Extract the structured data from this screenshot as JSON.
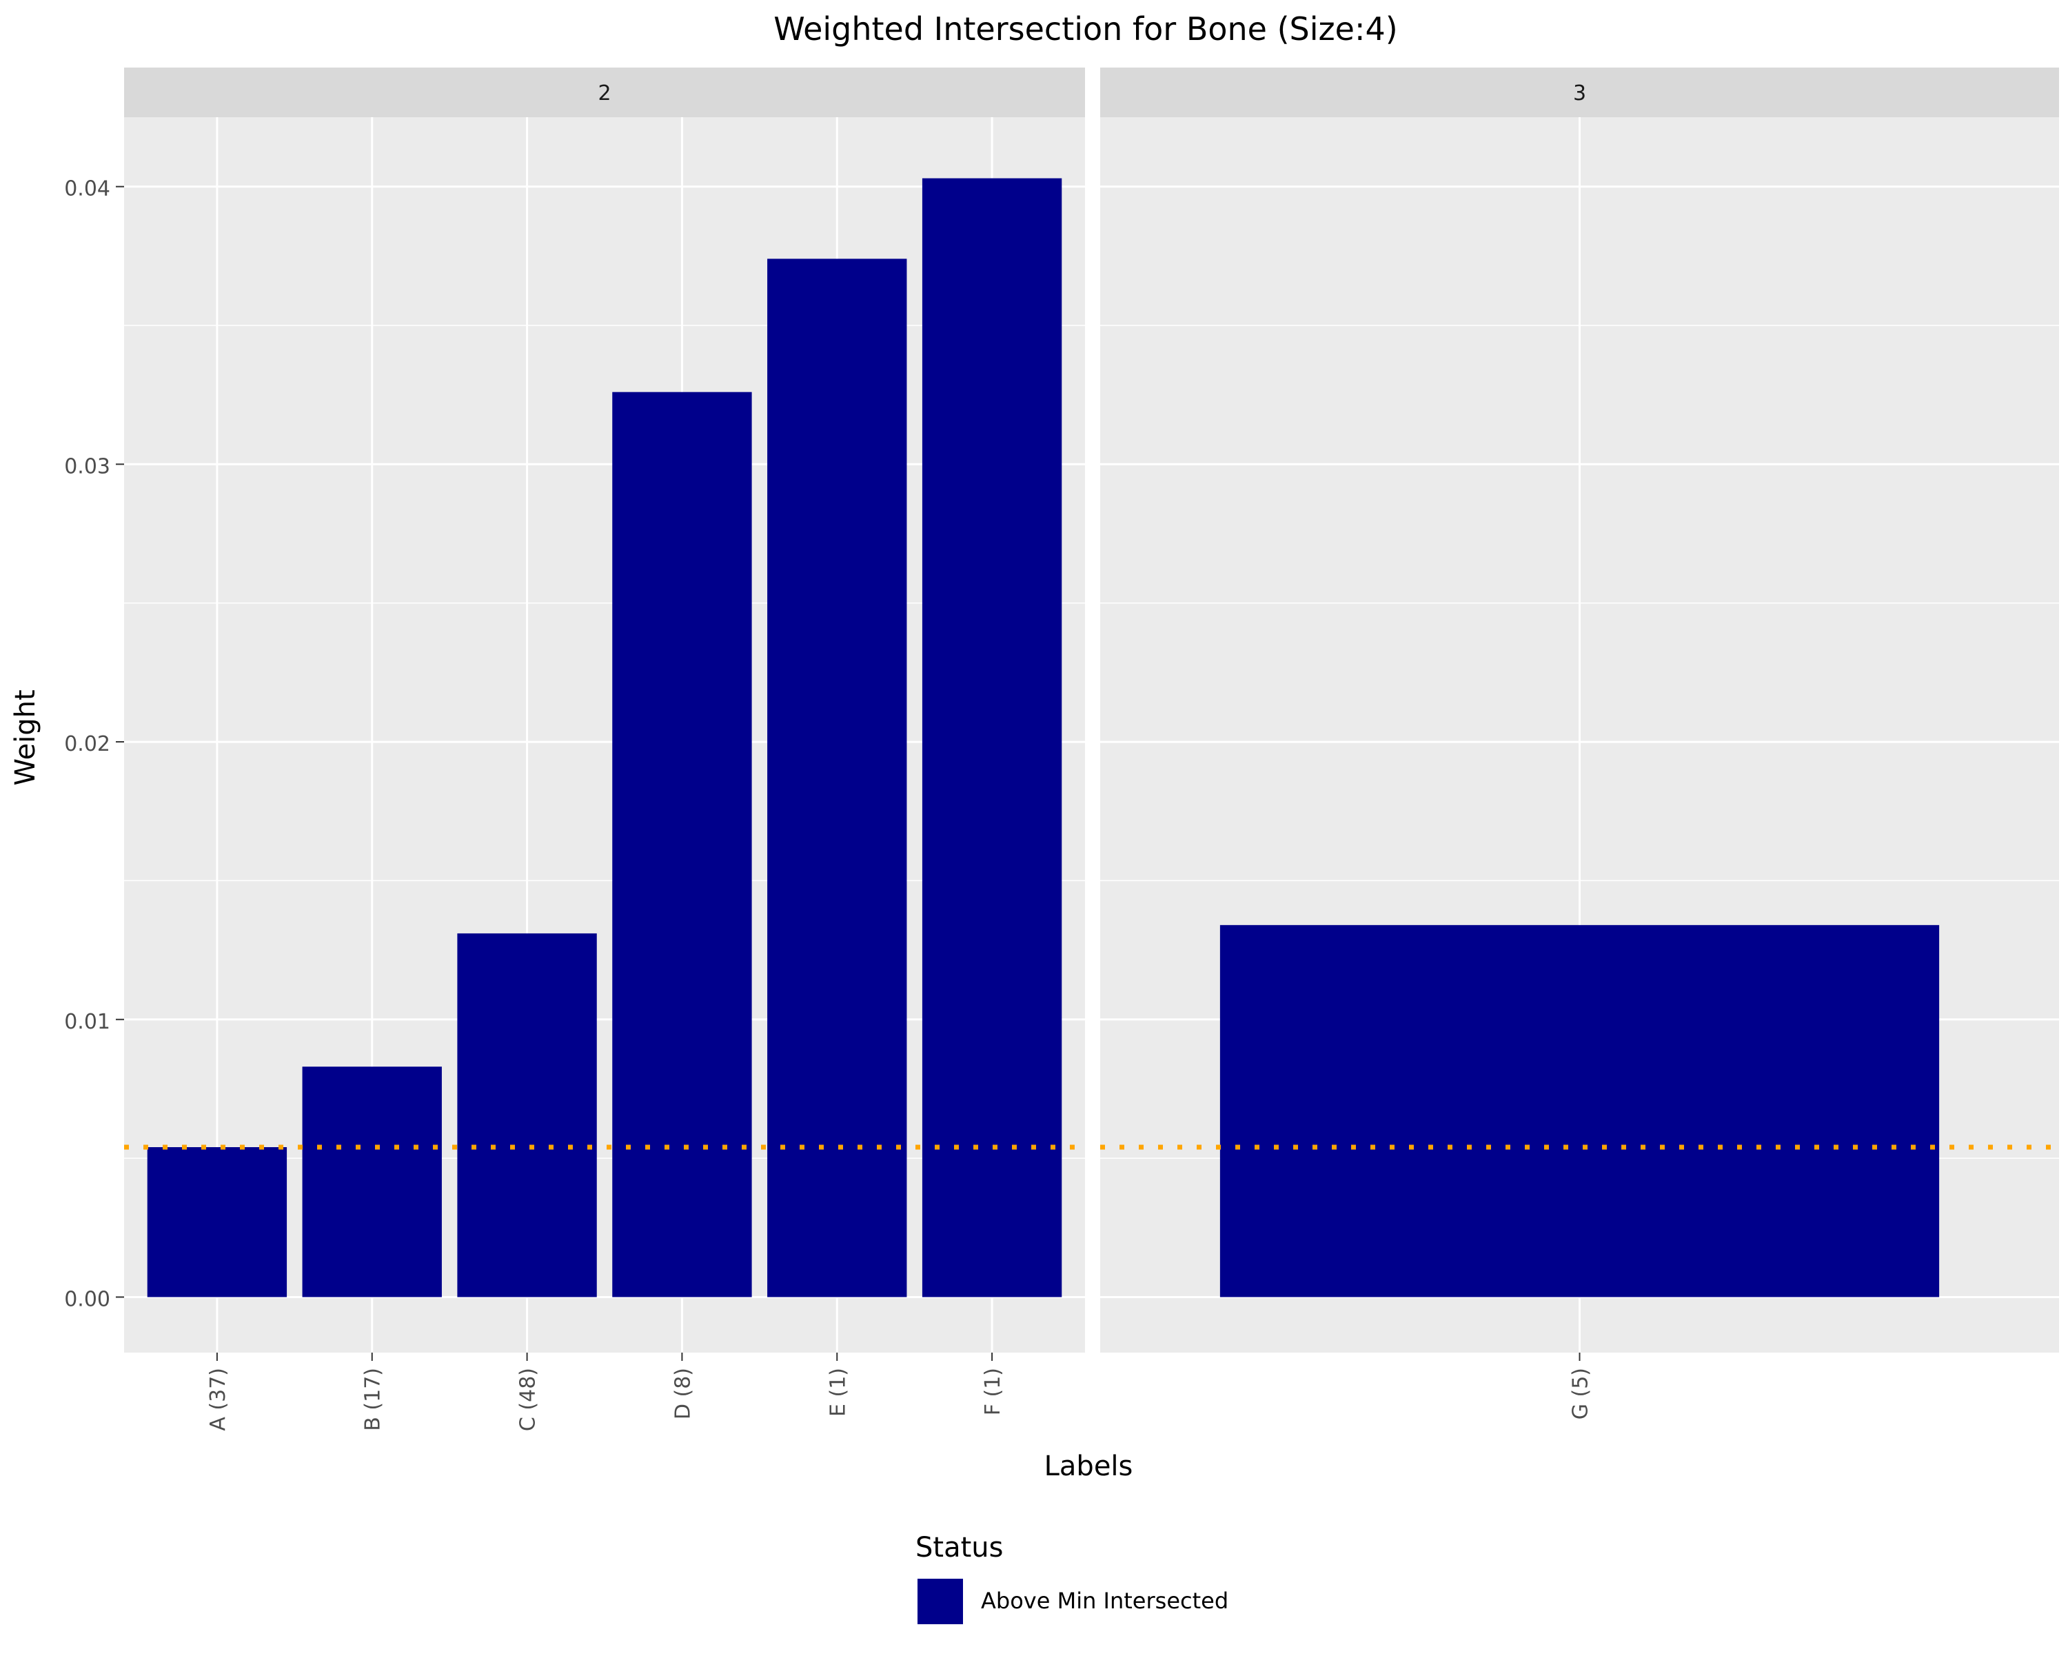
{
  "chart_data": {
    "type": "bar",
    "title": "Weighted Intersection for Bone (Size:4)",
    "xlabel": "Labels",
    "ylabel": "Weight",
    "ylim": [
      -0.002,
      0.0425
    ],
    "yticks": [
      0.0,
      0.01,
      0.02,
      0.03,
      0.04
    ],
    "ytick_labels": [
      "0.00",
      "0.01",
      "0.02",
      "0.03",
      "0.04"
    ],
    "grid": true,
    "threshold": {
      "value": 0.0054,
      "color": "#FFA500",
      "style": "dotted"
    },
    "bar_color": "#00008B",
    "facets": [
      {
        "label": "2",
        "categories": [
          "A (37)",
          "B (17)",
          "C (48)",
          "D (8)",
          "E (1)",
          "F (1)"
        ],
        "values": [
          0.0054,
          0.0083,
          0.0131,
          0.0326,
          0.0374,
          0.0403
        ]
      },
      {
        "label": "3",
        "categories": [
          "G (5)"
        ],
        "values": [
          0.0134
        ]
      }
    ],
    "legend": {
      "title": "Status",
      "placement": "bottom",
      "entries": [
        {
          "label": "Above Min Intersected",
          "color": "#00008B"
        }
      ]
    }
  }
}
